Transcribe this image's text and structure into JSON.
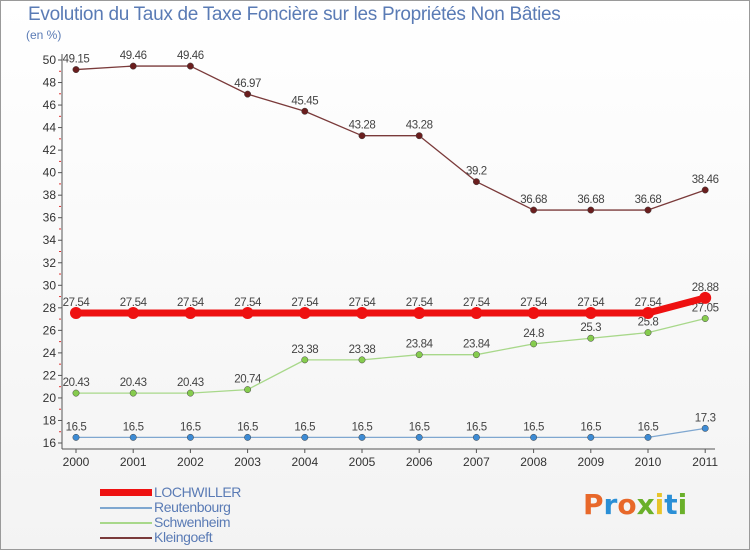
{
  "title": "Evolution du Taux de Taxe Foncière sur les Propriétés Non Bâties",
  "unit_label": "(en %)",
  "brand": {
    "text": "Proxiti",
    "colors": [
      "#e8682a",
      "#2a8fd6",
      "#e8682a",
      "#6ab02a",
      "#e8c42a",
      "#2a8fd6",
      "#6ab02a"
    ]
  },
  "chart_data": {
    "type": "line",
    "x": [
      "2000",
      "2001",
      "2002",
      "2003",
      "2004",
      "2005",
      "2006",
      "2007",
      "2008",
      "2009",
      "2010",
      "2011"
    ],
    "ylim": [
      16,
      50
    ],
    "yticks": [
      16,
      18,
      20,
      22,
      24,
      26,
      28,
      30,
      32,
      34,
      36,
      38,
      40,
      42,
      44,
      46,
      48,
      50
    ],
    "grid": false,
    "legend_position": "bottom-left",
    "series": [
      {
        "name": "LOCHWILLER",
        "color": "#ee1111",
        "point_color": "#ee1111",
        "thick": true,
        "values": [
          27.54,
          27.54,
          27.54,
          27.54,
          27.54,
          27.54,
          27.54,
          27.54,
          27.54,
          27.54,
          27.54,
          28.88
        ],
        "labels": [
          "27.54",
          "27.54",
          "27.54",
          "27.54",
          "27.54",
          "27.54",
          "27.54",
          "27.54",
          "27.54",
          "27.54",
          "27.54",
          "28.88"
        ]
      },
      {
        "name": "Reutenbourg",
        "color": "#7fa7d0",
        "point_color": "#3d8bd4",
        "thick": false,
        "values": [
          16.5,
          16.5,
          16.5,
          16.5,
          16.5,
          16.5,
          16.5,
          16.5,
          16.5,
          16.5,
          16.5,
          17.3
        ],
        "labels": [
          "16.5",
          "16.5",
          "16.5",
          "16.5",
          "16.5",
          "16.5",
          "16.5",
          "16.5",
          "16.5",
          "16.5",
          "16.5",
          "17.3"
        ]
      },
      {
        "name": "Schwenheim",
        "color": "#a8d88a",
        "point_color": "#86cc4e",
        "thick": false,
        "values": [
          20.43,
          20.43,
          20.43,
          20.74,
          23.38,
          23.38,
          23.84,
          23.84,
          24.8,
          25.3,
          25.8,
          27.05
        ],
        "labels": [
          "20.43",
          "20.43",
          "20.43",
          "20.74",
          "23.38",
          "23.38",
          "23.84",
          "23.84",
          "24.8",
          "25.3",
          "25.8",
          "27.05"
        ]
      },
      {
        "name": "Kleingoeft",
        "color": "#7a3a3a",
        "point_color": "#6a1e1e",
        "thick": false,
        "values": [
          49.15,
          49.46,
          49.46,
          46.97,
          45.45,
          43.28,
          43.28,
          39.2,
          36.68,
          36.68,
          36.68,
          38.46
        ],
        "labels": [
          "49.15",
          "49.46",
          "49.46",
          "46.97",
          "45.45",
          "43.28",
          "43.28",
          "39.2",
          "36.68",
          "36.68",
          "36.68",
          "38.46"
        ]
      }
    ]
  }
}
